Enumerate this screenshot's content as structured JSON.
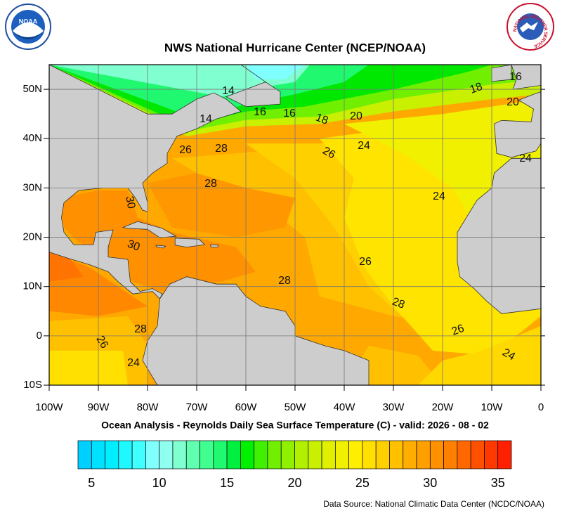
{
  "title": "NWS National Hurricane Center (NCEP/NOAA)",
  "subtitle": "Ocean Analysis - Reynolds Daily Sea Surface Temperature (C) - valid: 2026 - 08 - 02",
  "source": "Data Source: National Climatic Data Center (NCDC/NOAA)",
  "logos": {
    "noaa": "NOAA",
    "nws": "NATIONAL WEATHER SERVICE"
  },
  "map": {
    "lonlim": [
      -100,
      0
    ],
    "latlim": [
      -10,
      55
    ],
    "lon_ticks": [
      {
        "value": -100,
        "label": "100W"
      },
      {
        "value": -90,
        "label": "90W"
      },
      {
        "value": -80,
        "label": "80W"
      },
      {
        "value": -70,
        "label": "70W"
      },
      {
        "value": -60,
        "label": "60W"
      },
      {
        "value": -50,
        "label": "50W"
      },
      {
        "value": -40,
        "label": "40W"
      },
      {
        "value": -30,
        "label": "30W"
      },
      {
        "value": -20,
        "label": "20W"
      },
      {
        "value": -10,
        "label": "10W"
      },
      0
    ],
    "lat_ticks": [
      {
        "value": 50,
        "label": "50N"
      },
      {
        "value": 40,
        "label": "40N"
      },
      {
        "value": 30,
        "label": "30N"
      },
      {
        "value": 20,
        "label": "20N"
      },
      {
        "value": 10,
        "label": "10N"
      },
      0,
      {
        "value": -10,
        "label": "10S"
      }
    ],
    "grid": true,
    "contour_labels": [
      "14",
      "14",
      "16",
      "16",
      "18",
      "20",
      "18",
      "16",
      "20",
      "26",
      "28",
      "26",
      "24",
      "28",
      "30",
      "30",
      "24",
      "26",
      "28",
      "28",
      "26",
      "28",
      "26",
      "24",
      "24",
      "24"
    ]
  },
  "colorbar": {
    "lim": [
      4,
      36
    ],
    "ticks": [
      5,
      10,
      15,
      20,
      25,
      30,
      35
    ],
    "colors": [
      "#00d0ff",
      "#00e0ff",
      "#00eeff",
      "#20f8ff",
      "#40ffff",
      "#80ffff",
      "#90fff0",
      "#80ffd0",
      "#60ffb0",
      "#40ff90",
      "#20f870",
      "#00f040",
      "#00f000",
      "#40f000",
      "#70f000",
      "#90f000",
      "#b0f000",
      "#c8f000",
      "#e0f000",
      "#f0f000",
      "#ffee00",
      "#ffe000",
      "#ffd000",
      "#ffc000",
      "#ffae00",
      "#ffa000",
      "#ff9000",
      "#ff8000",
      "#ff6800",
      "#ff5000",
      "#ff3800",
      "#ff2000"
    ]
  }
}
